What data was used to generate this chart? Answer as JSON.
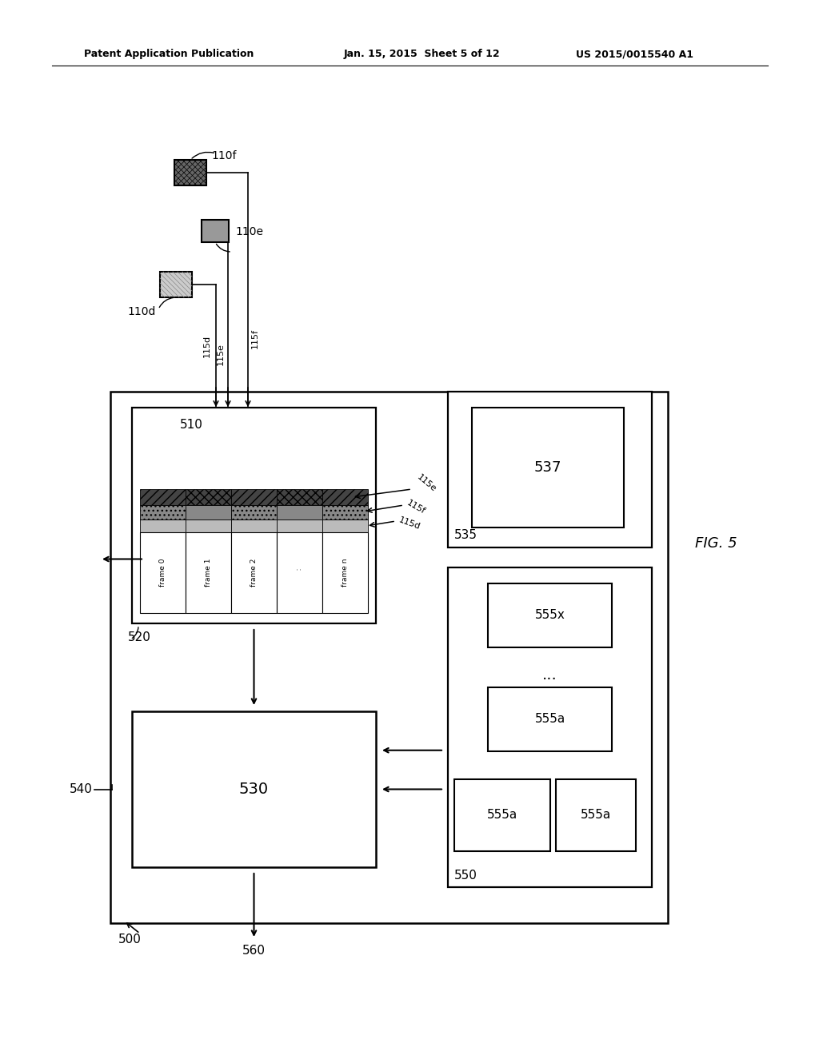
{
  "title_left": "Patent Application Publication",
  "title_center": "Jan. 15, 2015  Sheet 5 of 12",
  "title_right": "US 2015/0015540 A1",
  "fig_label": "FIG. 5",
  "background": "#ffffff"
}
